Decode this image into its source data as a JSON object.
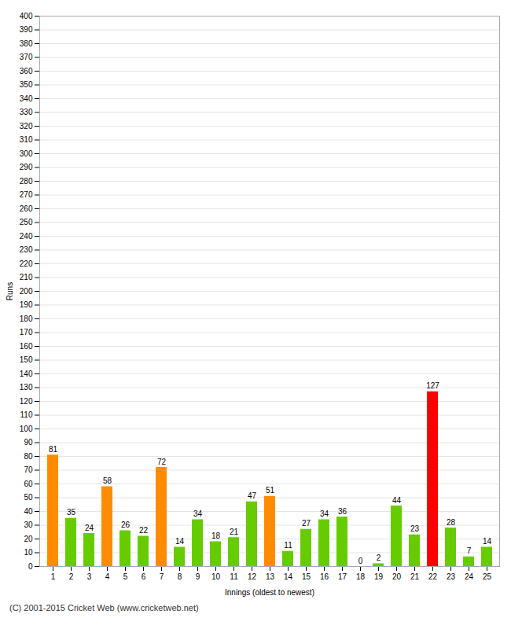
{
  "chart_data": {
    "type": "bar",
    "categories": [
      "1",
      "2",
      "3",
      "4",
      "5",
      "6",
      "7",
      "8",
      "9",
      "10",
      "11",
      "12",
      "13",
      "14",
      "15",
      "16",
      "17",
      "18",
      "19",
      "20",
      "21",
      "22",
      "23",
      "24",
      "25"
    ],
    "values": [
      81,
      35,
      24,
      58,
      26,
      22,
      72,
      14,
      34,
      18,
      21,
      47,
      51,
      11,
      27,
      34,
      36,
      0,
      2,
      44,
      23,
      127,
      28,
      7,
      14
    ],
    "colors": [
      "#ff8c00",
      "#66cc00",
      "#66cc00",
      "#ff8c00",
      "#66cc00",
      "#66cc00",
      "#ff8c00",
      "#66cc00",
      "#66cc00",
      "#66cc00",
      "#66cc00",
      "#66cc00",
      "#ff8c00",
      "#66cc00",
      "#66cc00",
      "#66cc00",
      "#66cc00",
      "#66cc00",
      "#66cc00",
      "#66cc00",
      "#66cc00",
      "#ff0000",
      "#66cc00",
      "#66cc00",
      "#66cc00"
    ],
    "xlabel": "Innings (oldest to newest)",
    "ylabel": "Runs",
    "ylim": [
      0,
      400
    ],
    "yticks": [
      0,
      10,
      20,
      30,
      40,
      50,
      60,
      70,
      80,
      90,
      100,
      110,
      120,
      130,
      140,
      150,
      160,
      170,
      180,
      190,
      200,
      210,
      220,
      230,
      240,
      250,
      260,
      270,
      280,
      290,
      300,
      310,
      320,
      330,
      340,
      350,
      360,
      370,
      380,
      390,
      400
    ],
    "grid": true,
    "data_labels": true,
    "caption": "(C) 2001-2015 Cricket Web (www.cricketweb.net)"
  }
}
